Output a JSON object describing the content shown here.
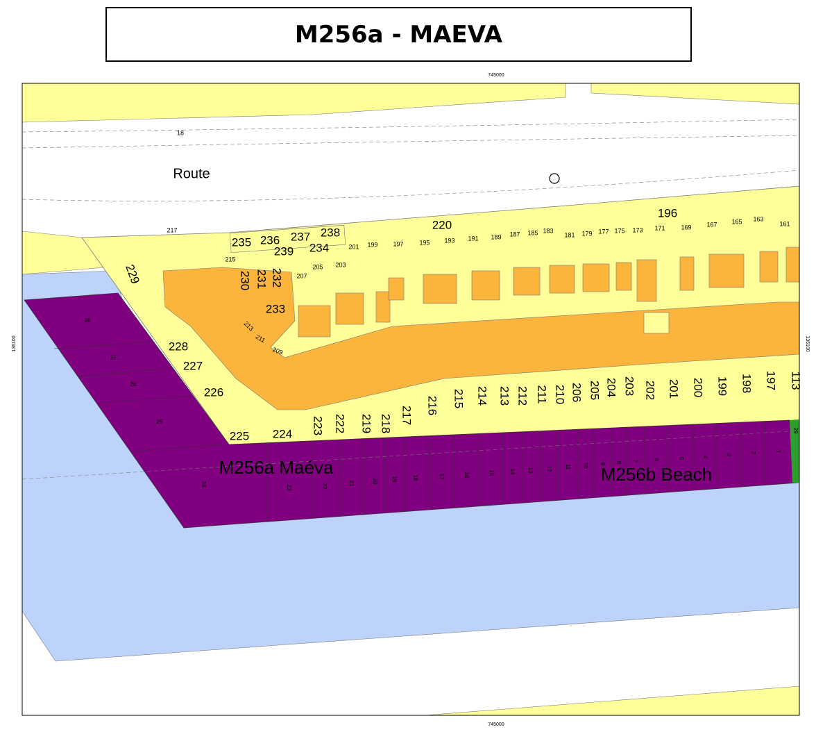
{
  "title": "M256a - MAEVA",
  "coordinates": {
    "top": "745000",
    "bottom": "745000",
    "left": "136100",
    "right": "136100"
  },
  "road": {
    "name": "Route",
    "labels": [
      "18",
      "217"
    ]
  },
  "blocks": [
    "196",
    "220"
  ],
  "small_lots": [
    "201",
    "199",
    "197",
    "195",
    "193",
    "191",
    "189",
    "187",
    "185",
    "183",
    "181",
    "179",
    "177",
    "175",
    "173",
    "171",
    "169",
    "167",
    "165",
    "163",
    "161",
    "215",
    "207",
    "205",
    "203",
    "213",
    "211",
    "209"
  ],
  "lots": [
    "235",
    "236",
    "237",
    "238",
    "239",
    "234",
    "229",
    "230",
    "231",
    "232",
    "233",
    "228",
    "227",
    "226",
    "225",
    "224",
    "223",
    "222",
    "219",
    "218",
    "217",
    "216",
    "215",
    "214",
    "213",
    "212",
    "211",
    "210",
    "206",
    "205",
    "204",
    "203",
    "202",
    "201",
    "200",
    "199",
    "198",
    "197",
    "113"
  ],
  "water_lots": [
    "28",
    "27",
    "26",
    "25",
    "24",
    "23",
    "22",
    "21",
    "20",
    "19",
    "18",
    "17",
    "16",
    "15",
    "14",
    "13",
    "12",
    "11",
    "10",
    "9",
    "8",
    "7",
    "6",
    "5",
    "4",
    "3",
    "2",
    "1"
  ],
  "green_lot": "29",
  "zones": [
    "M256a Maéva",
    "M256b Beach"
  ]
}
